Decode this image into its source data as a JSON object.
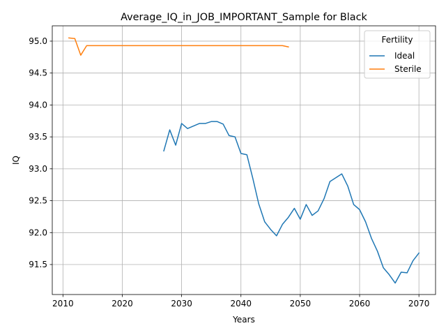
{
  "chart_data": {
    "type": "line",
    "title": "Average_IQ_in_JOB_IMPORTANT_Sample for Black",
    "xlabel": "Years",
    "ylabel": "IQ",
    "xlim": [
      2008.2,
      2072.8
    ],
    "ylim": [
      91.03,
      95.24
    ],
    "xticks": [
      2010,
      2020,
      2030,
      2040,
      2050,
      2060,
      2070
    ],
    "yticks": [
      91.5,
      92.0,
      92.5,
      93.0,
      93.5,
      94.0,
      94.5,
      95.0
    ],
    "grid": true,
    "legend": {
      "title": "Fertility",
      "placement": "top-right"
    },
    "series": [
      {
        "name": "Ideal",
        "color": "#1f77b4",
        "x": [
          2027,
          2028,
          2029,
          2030,
          2031,
          2032,
          2033,
          2034,
          2035,
          2036,
          2037,
          2038,
          2039,
          2040,
          2041,
          2042,
          2043,
          2044,
          2045,
          2046,
          2047,
          2048,
          2049,
          2050,
          2051,
          2052,
          2053,
          2054,
          2055,
          2056,
          2057,
          2058,
          2059,
          2060,
          2061,
          2062,
          2063,
          2064,
          2065,
          2066,
          2067,
          2068,
          2069,
          2070
        ],
        "y": [
          93.28,
          93.61,
          93.37,
          93.71,
          93.63,
          93.67,
          93.71,
          93.71,
          93.74,
          93.74,
          93.7,
          93.52,
          93.5,
          93.24,
          93.22,
          92.85,
          92.45,
          92.17,
          92.05,
          91.95,
          92.13,
          92.24,
          92.38,
          92.21,
          92.44,
          92.27,
          92.34,
          92.53,
          92.8,
          92.86,
          92.92,
          92.73,
          92.44,
          92.36,
          92.17,
          91.91,
          91.71,
          91.45,
          91.34,
          91.21,
          91.38,
          91.37,
          91.56,
          91.68
        ]
      },
      {
        "name": "Sterile",
        "color": "#ff7f0e",
        "x": [
          2011,
          2012,
          2013,
          2014,
          2015,
          2016,
          2017,
          2018,
          2019,
          2020,
          2021,
          2022,
          2023,
          2024,
          2025,
          2026,
          2027,
          2028,
          2029,
          2030,
          2031,
          2032,
          2033,
          2034,
          2035,
          2036,
          2037,
          2038,
          2039,
          2040,
          2041,
          2042,
          2043,
          2044,
          2045,
          2046,
          2047,
          2048
        ],
        "y": [
          95.05,
          95.04,
          94.78,
          94.93,
          94.93,
          94.93,
          94.93,
          94.93,
          94.93,
          94.93,
          94.93,
          94.93,
          94.93,
          94.93,
          94.93,
          94.93,
          94.93,
          94.93,
          94.93,
          94.93,
          94.93,
          94.93,
          94.93,
          94.93,
          94.93,
          94.93,
          94.93,
          94.93,
          94.93,
          94.93,
          94.93,
          94.93,
          94.93,
          94.93,
          94.93,
          94.93,
          94.93,
          94.91
        ]
      }
    ]
  }
}
